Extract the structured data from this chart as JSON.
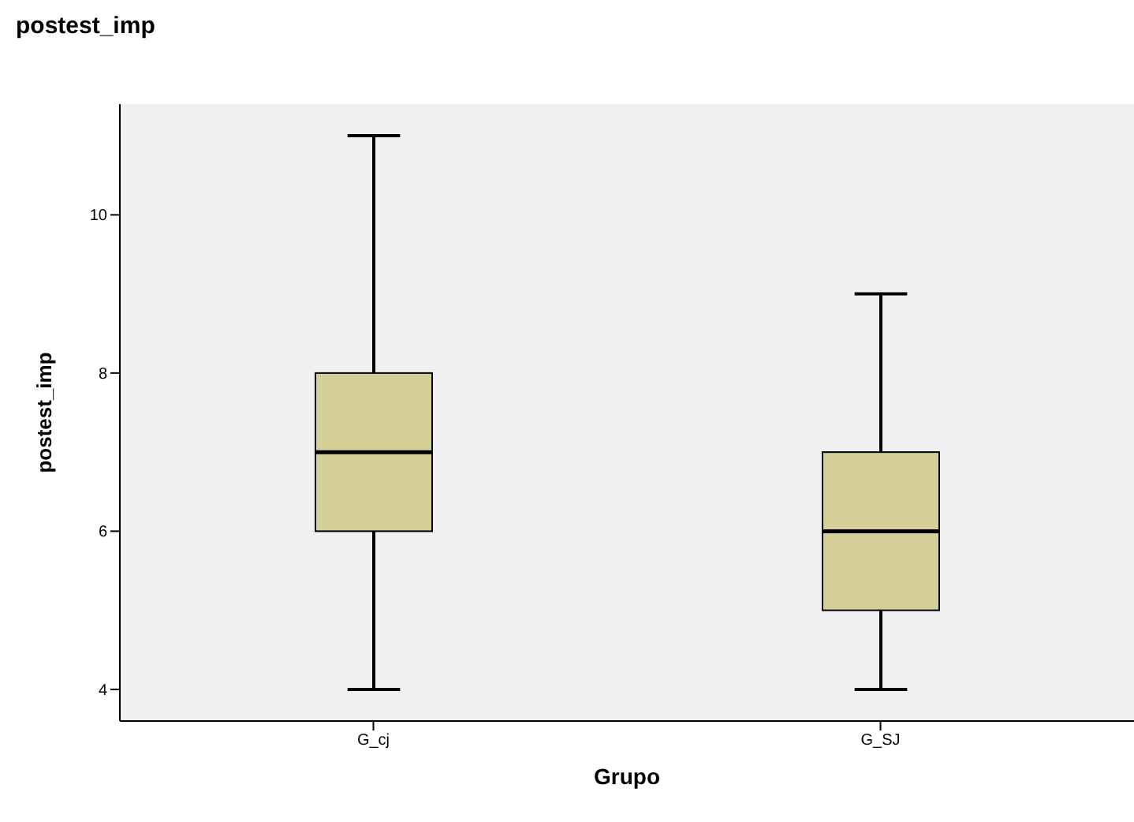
{
  "chart_data": {
    "type": "box",
    "title": "postest_imp",
    "xlabel": "Grupo",
    "ylabel": "postest_imp",
    "categories": [
      "G_cj",
      "G_SJ"
    ],
    "color": "#d4cf97",
    "boxes": [
      {
        "low": 4,
        "q1": 6,
        "median": 7,
        "q3": 8,
        "high": 11
      },
      {
        "low": 4,
        "q1": 5,
        "median": 6,
        "q3": 7,
        "high": 9
      }
    ],
    "ylim": [
      3.6,
      11.4
    ],
    "yticks": [
      4,
      6,
      8,
      10
    ]
  }
}
